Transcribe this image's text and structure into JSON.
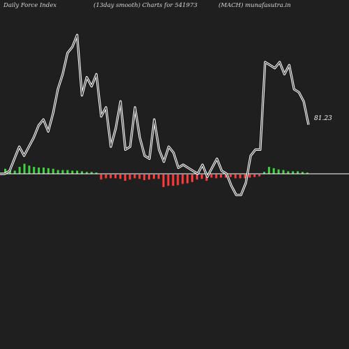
{
  "header": {
    "title": "Daily Force  Index",
    "subtitle": "(13day smooth) Charts for 541973",
    "symbol": "(MACH) munafasutra.in"
  },
  "colors": {
    "background": "#1f1f1f",
    "line": "#ffffff",
    "positive_bar": "#3fd43f",
    "negative_bar": "#ff3b3b",
    "zero_line": "#ffffff"
  },
  "chart_data": {
    "type": "line",
    "title": "Daily Force  Index",
    "subtitle": "(13day smooth) Charts for 541973",
    "last_value_label": "81.23",
    "ylim": [
      -100,
      200
    ],
    "grid": false,
    "series": [
      {
        "kind": "line",
        "values": [
          0,
          0,
          5,
          25,
          45,
          30,
          45,
          60,
          80,
          90,
          70,
          100,
          140,
          165,
          200,
          210,
          230,
          130,
          160,
          145,
          165,
          95,
          110,
          45,
          75,
          120,
          40,
          45,
          110,
          60,
          30,
          25,
          90,
          40,
          20,
          45,
          35,
          10,
          15,
          10,
          5,
          0,
          15,
          -5,
          10,
          25,
          5,
          0,
          -20,
          -35,
          -35,
          -15,
          30,
          40,
          40,
          185,
          180,
          175,
          185,
          165,
          180,
          140,
          135,
          120,
          81.23
        ]
      },
      {
        "kind": "bar",
        "values": [
          8,
          6,
          5,
          11,
          16,
          13,
          11,
          10,
          10,
          9,
          8,
          6,
          6,
          6,
          5,
          5,
          4,
          3,
          3,
          2,
          -8,
          -6,
          -6,
          -6,
          -7,
          -10,
          -8,
          -6,
          -7,
          -9,
          -8,
          -7,
          -7,
          -20,
          -18,
          -18,
          -17,
          -15,
          -14,
          -12,
          -8,
          -7,
          -10,
          -5,
          -6,
          -5,
          -5,
          -4,
          -6,
          -6,
          -6,
          -5,
          -4,
          -3,
          3,
          11,
          9,
          7,
          6,
          4,
          4,
          4,
          3,
          2
        ]
      }
    ]
  }
}
